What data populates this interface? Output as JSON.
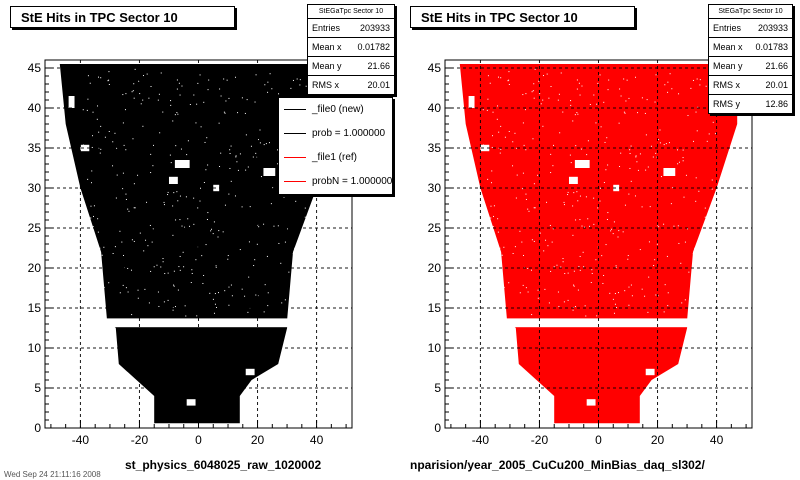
{
  "chart_data": [
    {
      "type": "scatter",
      "title": "StE Hits in TPC Sector 10",
      "stats": {
        "name": "StEGaTpc Sector 10",
        "rows": [
          {
            "label": "Entries",
            "value": "203933"
          },
          {
            "label": "Mean x",
            "value": "0.01782"
          },
          {
            "label": "Mean y",
            "value": "21.66"
          },
          {
            "label": "RMS x",
            "value": "20.01"
          }
        ]
      },
      "legend": [
        {
          "label": "_file0 (new)",
          "color": "#000000"
        },
        {
          "label": "prob = 1.000000",
          "color": "#000000"
        },
        {
          "label": "_file1 (ref)",
          "color": "#ff0000"
        },
        {
          "label": "probN = 1.000000",
          "color": "#ff0000"
        }
      ],
      "marker_color": "#000000",
      "xlim": [
        -52,
        52
      ],
      "ylim": [
        0,
        46
      ],
      "x_ticks": [
        -40,
        -20,
        0,
        20,
        40
      ],
      "y_ticks": [
        0,
        5,
        10,
        15,
        20,
        25,
        30,
        35,
        40,
        45
      ],
      "grid": true,
      "footer": "st_physics_6048025_raw_1020002",
      "corner_text": "Wed Sep 24 21:11:16 2008"
    },
    {
      "type": "scatter",
      "title": "StE Hits in TPC Sector 10",
      "stats": {
        "name": "StEGaTpc Sector 10",
        "rows": [
          {
            "label": "Entries",
            "value": "203933"
          },
          {
            "label": "Mean x",
            "value": "0.01783"
          },
          {
            "label": "Mean y",
            "value": "21.66"
          },
          {
            "label": "RMS x",
            "value": "20.01"
          },
          {
            "label": "RMS y",
            "value": "12.86"
          }
        ]
      },
      "marker_color": "#ff0000",
      "xlim": [
        -52,
        52
      ],
      "ylim": [
        0,
        46
      ],
      "x_ticks": [
        -40,
        -20,
        0,
        20,
        40
      ],
      "y_ticks": [
        0,
        5,
        10,
        15,
        20,
        25,
        30,
        35,
        40,
        45
      ],
      "grid": true,
      "footer": "nparision/year_2005_CuCu200_MinBias_daq_sl302/"
    }
  ]
}
